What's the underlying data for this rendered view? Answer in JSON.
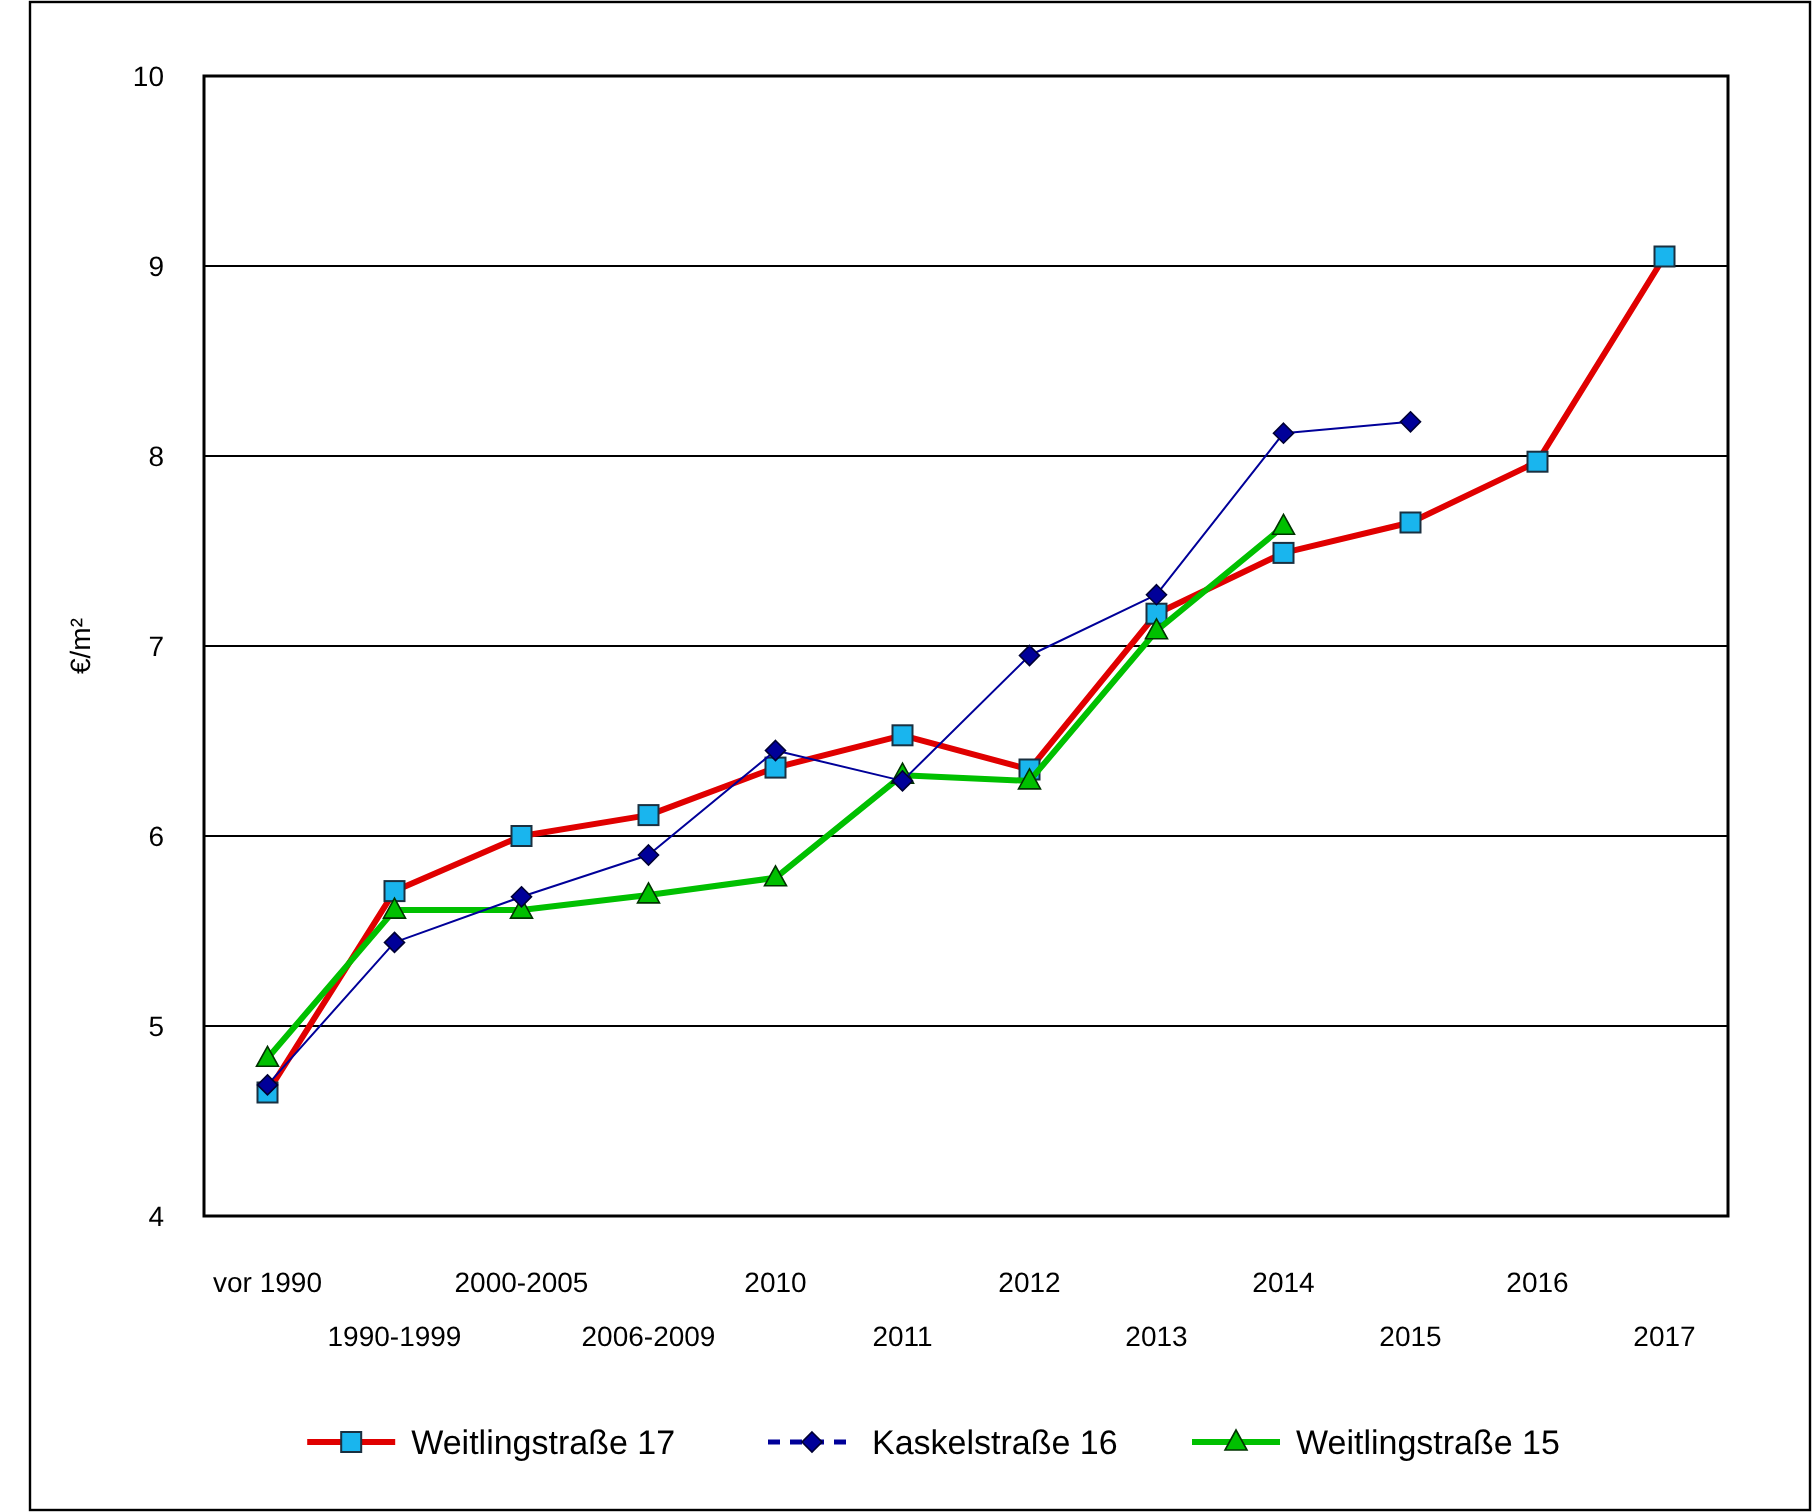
{
  "chart_data": {
    "type": "line",
    "ylabel": "€/m²",
    "categories": [
      "vor 1990",
      "1990-1999",
      "2000-2005",
      "2006-2009",
      "2010",
      "2011",
      "2012",
      "2013",
      "2014",
      "2015",
      "2016",
      "2017"
    ],
    "ylim": [
      4,
      10
    ],
    "yticks": [
      4,
      5,
      6,
      7,
      8,
      9,
      10
    ],
    "grid": "y",
    "legend": "bottom",
    "series": [
      {
        "name": "Weitlingstraße 17",
        "color": "#e00000",
        "marker": "square",
        "values": [
          4.65,
          5.71,
          6.0,
          6.11,
          6.36,
          6.53,
          6.35,
          7.17,
          7.49,
          7.65,
          7.97,
          9.05
        ]
      },
      {
        "name": "Kaskelstraße 16",
        "color": "#000099",
        "marker": "diamond",
        "values": [
          4.69,
          5.44,
          5.68,
          5.9,
          6.45,
          6.29,
          6.95,
          7.27,
          8.12,
          8.18,
          null,
          null
        ]
      },
      {
        "name": "Weitlingstraße 15",
        "color": "#00c000",
        "marker": "triangle",
        "values": [
          4.83,
          5.61,
          5.61,
          5.69,
          5.78,
          6.32,
          6.29,
          7.08,
          7.63,
          null,
          null,
          null
        ]
      }
    ]
  }
}
